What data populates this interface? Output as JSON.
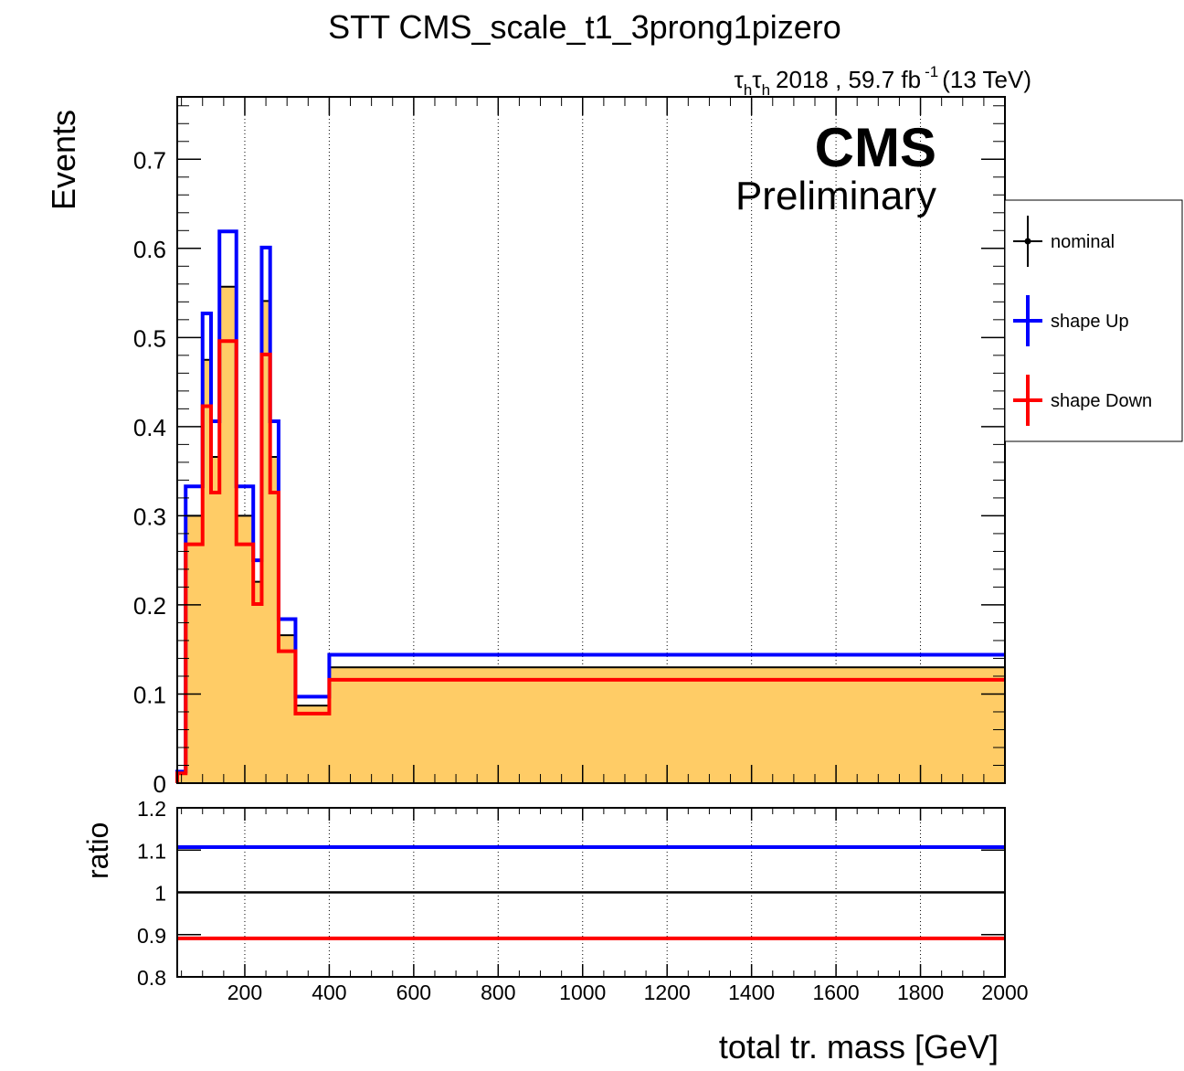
{
  "chart_data": {
    "type": "histogram",
    "title": "STT CMS_scale_t1_3prong1pizero",
    "lumi_label": {
      "tau": "τ",
      "sub_h": "h",
      "rest": "2018 , 59.7 fb",
      "sup": "-1",
      "energy": "(13 TeV)"
    },
    "cms_label": "CMS",
    "preliminary_label": "Preliminary",
    "xlabel": "total tr. mass [GeV]",
    "ylabel": "Events",
    "ratio_ylabel": "ratio",
    "xlim": [
      40,
      2000
    ],
    "ylim": [
      0,
      0.77
    ],
    "ratio_ylim": [
      0.8,
      1.2
    ],
    "x_ticks": [
      "200",
      "400",
      "600",
      "800",
      "1000",
      "1200",
      "1400",
      "1600",
      "1800",
      "2000"
    ],
    "y_ticks": [
      "0",
      "0.1",
      "0.2",
      "0.3",
      "0.4",
      "0.5",
      "0.6",
      "0.7"
    ],
    "ratio_ticks": [
      "0.8",
      "0.9",
      "1",
      "1.1",
      "1.2"
    ],
    "grid": "vertical dotted",
    "legend_position": "right",
    "bin_edges": [
      40,
      60,
      80,
      100,
      120,
      140,
      160,
      180,
      200,
      220,
      240,
      260,
      280,
      320,
      400,
      2000
    ],
    "series": [
      {
        "name": "nominal",
        "color": "#000000",
        "fill": "#ffcc66",
        "values": [
          0.012,
          0.3,
          0.3,
          0.475,
          0.366,
          0.557,
          0.557,
          0.3,
          0.3,
          0.226,
          0.541,
          0.366,
          0.166,
          0.087,
          0.13
        ]
      },
      {
        "name": "shape Up",
        "color": "#0000ff",
        "values": [
          0.013,
          0.333,
          0.333,
          0.527,
          0.406,
          0.619,
          0.619,
          0.333,
          0.333,
          0.25,
          0.601,
          0.406,
          0.184,
          0.097,
          0.144
        ]
      },
      {
        "name": "shape Down",
        "color": "#ff0000",
        "values": [
          0.011,
          0.268,
          0.268,
          0.423,
          0.326,
          0.496,
          0.496,
          0.268,
          0.268,
          0.201,
          0.481,
          0.326,
          0.148,
          0.078,
          0.116
        ]
      }
    ],
    "ratio_series": [
      {
        "name": "nominal",
        "color": "#000000",
        "value": 1.0
      },
      {
        "name": "shape Up",
        "color": "#0000ff",
        "value": 1.107
      },
      {
        "name": "shape Down",
        "color": "#ff0000",
        "value": 0.891
      }
    ]
  }
}
